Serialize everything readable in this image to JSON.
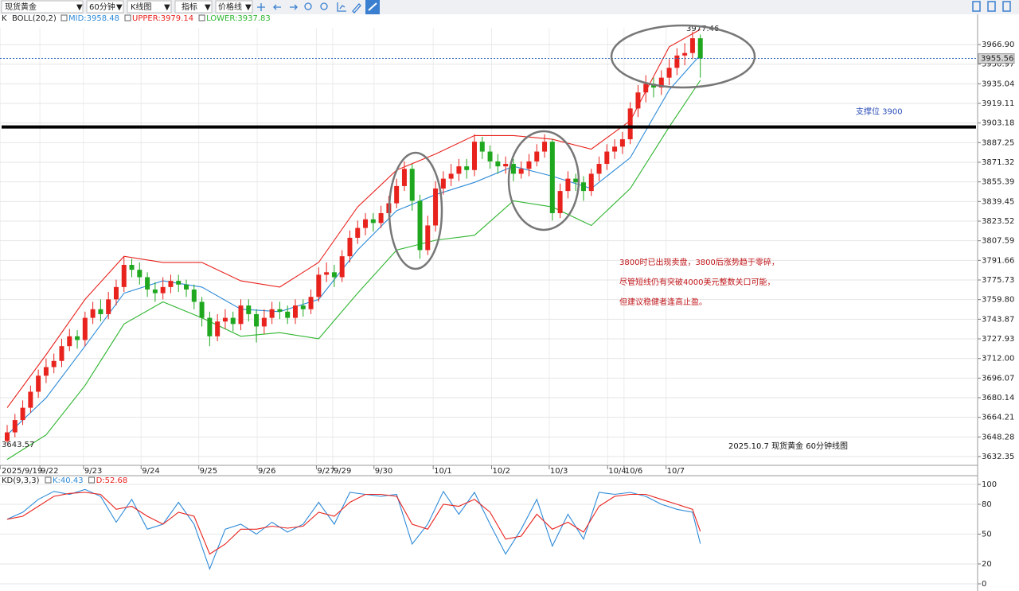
{
  "toolbar": {
    "symbol": "现货黄金",
    "period": "60分钟",
    "chart_type": "K线图",
    "indicator": "指标",
    "price_line": "价格线"
  },
  "chart_data": [
    {
      "type": "candlestick",
      "legend_prefix": "K",
      "indicator_name": "BOLL(20,2)",
      "up_color": "#e8231e",
      "down_color": "#1fa81f",
      "open": [
        3645,
        3652,
        3662,
        3672,
        3685,
        3698,
        3705,
        3710,
        3722,
        3730,
        3727,
        3745,
        3752,
        3748,
        3760,
        3770,
        3788,
        3784,
        3778,
        3768,
        3765,
        3770,
        3775,
        3772,
        3768,
        3758,
        3745,
        3730,
        3742,
        3745,
        3740,
        3755,
        3748,
        3738,
        3745,
        3752,
        3750,
        3745,
        3755,
        3752,
        3762,
        3780,
        3782,
        3778,
        3795,
        3810,
        3818,
        3825,
        3822,
        3830,
        3838,
        3852,
        3866,
        3840,
        3800,
        3820,
        3850,
        3858,
        3862,
        3868,
        3865,
        3888,
        3880,
        3872,
        3868,
        3870,
        3862,
        3866,
        3872,
        3880,
        3888,
        3830,
        3848,
        3858,
        3855,
        3848,
        3862,
        3870,
        3880,
        3884,
        3890,
        3915,
        3928,
        3935,
        3932,
        3940,
        3948,
        3958,
        3960,
        3972
      ],
      "high": [
        3658,
        3667,
        3678,
        3690,
        3703,
        3712,
        3716,
        3728,
        3736,
        3735,
        3750,
        3758,
        3760,
        3766,
        3776,
        3795,
        3793,
        3790,
        3782,
        3774,
        3778,
        3780,
        3780,
        3776,
        3772,
        3762,
        3750,
        3748,
        3752,
        3750,
        3760,
        3760,
        3752,
        3752,
        3758,
        3758,
        3755,
        3760,
        3760,
        3768,
        3786,
        3790,
        3788,
        3800,
        3816,
        3824,
        3830,
        3830,
        3836,
        3844,
        3858,
        3872,
        3870,
        3845,
        3828,
        3856,
        3864,
        3870,
        3874,
        3874,
        3894,
        3892,
        3885,
        3878,
        3876,
        3874,
        3872,
        3878,
        3886,
        3894,
        3890,
        3854,
        3864,
        3862,
        3860,
        3866,
        3876,
        3886,
        3890,
        3896,
        3920,
        3934,
        3942,
        3940,
        3946,
        3955,
        3964,
        3968,
        3977.46,
        3975
      ],
      "low": [
        3643.57,
        3648,
        3658,
        3668,
        3680,
        3692,
        3700,
        3705,
        3718,
        3720,
        3722,
        3740,
        3742,
        3744,
        3755,
        3766,
        3778,
        3772,
        3762,
        3758,
        3760,
        3765,
        3766,
        3762,
        3752,
        3738,
        3722,
        3726,
        3736,
        3734,
        3735,
        3742,
        3725,
        3732,
        3740,
        3744,
        3740,
        3740,
        3746,
        3748,
        3758,
        3774,
        3770,
        3774,
        3790,
        3805,
        3812,
        3815,
        3818,
        3825,
        3834,
        3848,
        3832,
        3793,
        3796,
        3815,
        3845,
        3852,
        3856,
        3858,
        3860,
        3874,
        3866,
        3862,
        3862,
        3856,
        3858,
        3860,
        3868,
        3875,
        3824,
        3826,
        3842,
        3848,
        3840,
        3844,
        3856,
        3865,
        3874,
        3878,
        3886,
        3908,
        3920,
        3924,
        3926,
        3934,
        3942,
        3950,
        3955,
        3940
      ],
      "close": [
        3652,
        3662,
        3672,
        3685,
        3698,
        3705,
        3710,
        3722,
        3730,
        3727,
        3745,
        3752,
        3748,
        3760,
        3770,
        3788,
        3784,
        3778,
        3768,
        3765,
        3770,
        3775,
        3772,
        3768,
        3758,
        3745,
        3730,
        3742,
        3745,
        3740,
        3755,
        3748,
        3738,
        3745,
        3752,
        3750,
        3745,
        3755,
        3752,
        3762,
        3780,
        3782,
        3778,
        3795,
        3810,
        3818,
        3825,
        3822,
        3830,
        3838,
        3852,
        3866,
        3840,
        3800,
        3820,
        3850,
        3858,
        3862,
        3868,
        3865,
        3888,
        3880,
        3872,
        3868,
        3870,
        3862,
        3866,
        3872,
        3880,
        3888,
        3830,
        3848,
        3858,
        3855,
        3848,
        3862,
        3870,
        3880,
        3884,
        3890,
        3915,
        3928,
        3935,
        3932,
        3940,
        3948,
        3958,
        3960,
        3972,
        3955.56
      ],
      "series": [
        {
          "name": "MID:3958.48",
          "color": "#2e8bd8",
          "x": [
            0,
            5,
            10,
            15,
            20,
            25,
            30,
            35,
            40,
            45,
            50,
            55,
            60,
            65,
            70,
            75,
            80,
            85,
            89
          ],
          "values": [
            3650,
            3680,
            3722,
            3765,
            3775,
            3770,
            3752,
            3750,
            3760,
            3800,
            3832,
            3845,
            3855,
            3868,
            3860,
            3850,
            3875,
            3930,
            3958.48
          ]
        },
        {
          "name": "UPPER:3979.14",
          "color": "#e8231e",
          "x": [
            0,
            5,
            10,
            15,
            20,
            25,
            30,
            35,
            40,
            45,
            50,
            55,
            60,
            65,
            70,
            75,
            80,
            85,
            89
          ],
          "values": [
            3672,
            3715,
            3760,
            3795,
            3790,
            3790,
            3775,
            3770,
            3790,
            3835,
            3865,
            3878,
            3893,
            3893,
            3890,
            3882,
            3905,
            3965,
            3979.14
          ]
        },
        {
          "name": "LOWER:3937.83",
          "color": "#2fb52f",
          "x": [
            0,
            5,
            10,
            15,
            20,
            25,
            30,
            35,
            40,
            45,
            50,
            55,
            60,
            65,
            70,
            75,
            80,
            85,
            89
          ],
          "values": [
            3630,
            3650,
            3690,
            3740,
            3758,
            3745,
            3730,
            3733,
            3728,
            3765,
            3800,
            3808,
            3812,
            3840,
            3835,
            3820,
            3850,
            3900,
            3937.83
          ]
        }
      ],
      "xlim": [
        -0.92,
        124.6
      ],
      "ylim": [
        3625.25,
        3980.46
      ],
      "xticks": [
        {
          "value": -0.9,
          "label": "2025/9/19"
        },
        {
          "value": 4.2,
          "label": "9/22"
        },
        {
          "value": 9.8,
          "label": "9/23"
        },
        {
          "value": 17.2,
          "label": "9/24"
        },
        {
          "value": 24.6,
          "label": "9/25"
        },
        {
          "value": 32.1,
          "label": "9/26"
        },
        {
          "value": 39.7,
          "label": "9/27"
        },
        {
          "value": 41.8,
          "label": "9/29"
        },
        {
          "value": 47.1,
          "label": "9/30"
        },
        {
          "value": 54.7,
          "label": "10/1"
        },
        {
          "value": 62.2,
          "label": "10/2"
        },
        {
          "value": 69.6,
          "label": "10/3"
        },
        {
          "value": 77.1,
          "label": "10/4"
        },
        {
          "value": 79.2,
          "label": "10/6"
        },
        {
          "value": 84.6,
          "label": "10/7"
        }
      ],
      "yticks": [
        {
          "value": 3966.9,
          "label": "3966.90"
        },
        {
          "value": 3950.97,
          "label": "3950.97"
        },
        {
          "value": 3935.04,
          "label": "3935.04"
        },
        {
          "value": 3919.11,
          "label": "3919.11"
        },
        {
          "value": 3903.18,
          "label": "3903.18"
        },
        {
          "value": 3887.25,
          "label": "3887.25"
        },
        {
          "value": 3871.32,
          "label": "3871.32"
        },
        {
          "value": 3855.39,
          "label": "3855.39"
        },
        {
          "value": 3839.45,
          "label": "3839.45"
        },
        {
          "value": 3823.52,
          "label": "3823.52"
        },
        {
          "value": 3807.59,
          "label": "3807.59"
        },
        {
          "value": 3791.66,
          "label": "3791.66"
        },
        {
          "value": 3775.73,
          "label": "3775.73"
        },
        {
          "value": 3759.8,
          "label": "3759.80"
        },
        {
          "value": 3743.87,
          "label": "3743.87"
        },
        {
          "value": 3727.93,
          "label": "3727.93"
        },
        {
          "value": 3712,
          "label": "3712.00"
        },
        {
          "value": 3696.07,
          "label": "3696.07"
        },
        {
          "value": 3680.14,
          "label": "3680.14"
        },
        {
          "value": 3664.21,
          "label": "3664.21"
        },
        {
          "value": 3648.28,
          "label": "3648.28"
        },
        {
          "value": 3632.35,
          "label": "3632.35"
        }
      ],
      "grid": true,
      "last_price": 3955.56,
      "high_label": 3977.46,
      "low_label": 3643.57,
      "support_level": 3900,
      "support_text": "支撑位 3900",
      "comment_lines": [
        "3800时已出现卖盘，3800后涨势趋于零碎，",
        "尽管短线仍有突破4000美元整数关口可能，",
        "但建议稳健者逢高止盈。"
      ],
      "caption": "2025.10.7 现货黄金 60分钟线图"
    },
    {
      "type": "line",
      "indicator_name": "KD(9,3,3)",
      "series": [
        {
          "name": "K:40.43",
          "color": "#2e8bd8",
          "x": [
            0,
            2,
            4,
            6,
            8,
            10,
            12,
            14,
            16,
            18,
            20,
            22,
            24,
            26,
            28,
            30,
            32,
            34,
            36,
            38,
            40,
            42,
            44,
            46,
            48,
            50,
            52,
            54,
            56,
            58,
            60,
            62,
            64,
            66,
            68,
            70,
            72,
            74,
            76,
            78,
            80,
            82,
            84,
            86,
            88,
            89
          ],
          "values": [
            65,
            72,
            85,
            93,
            90,
            95,
            88,
            62,
            85,
            55,
            60,
            82,
            60,
            15,
            55,
            60,
            50,
            62,
            52,
            60,
            82,
            60,
            92,
            90,
            88,
            90,
            40,
            60,
            93,
            70,
            92,
            60,
            30,
            55,
            85,
            38,
            70,
            45,
            92,
            90,
            92,
            88,
            80,
            75,
            72,
            40.43
          ]
        },
        {
          "name": "D:52.68",
          "color": "#e8231e",
          "x": [
            0,
            2,
            4,
            6,
            8,
            10,
            12,
            14,
            16,
            18,
            20,
            22,
            24,
            26,
            28,
            30,
            32,
            34,
            36,
            38,
            40,
            42,
            44,
            46,
            48,
            50,
            52,
            54,
            56,
            58,
            60,
            62,
            64,
            66,
            68,
            70,
            72,
            74,
            76,
            78,
            80,
            82,
            84,
            86,
            88,
            89
          ],
          "values": [
            65,
            68,
            78,
            88,
            91,
            92,
            90,
            75,
            78,
            68,
            60,
            72,
            68,
            30,
            40,
            55,
            55,
            58,
            56,
            58,
            72,
            68,
            82,
            90,
            90,
            88,
            60,
            55,
            80,
            78,
            85,
            72,
            45,
            48,
            70,
            55,
            62,
            52,
            78,
            88,
            90,
            90,
            85,
            80,
            75,
            52.68
          ]
        }
      ],
      "xlim": [
        -0.92,
        124.6
      ],
      "ylim": [
        -7.2,
        108.8
      ],
      "yticks": [
        0,
        20,
        50,
        80,
        100
      ],
      "grid": true
    }
  ]
}
